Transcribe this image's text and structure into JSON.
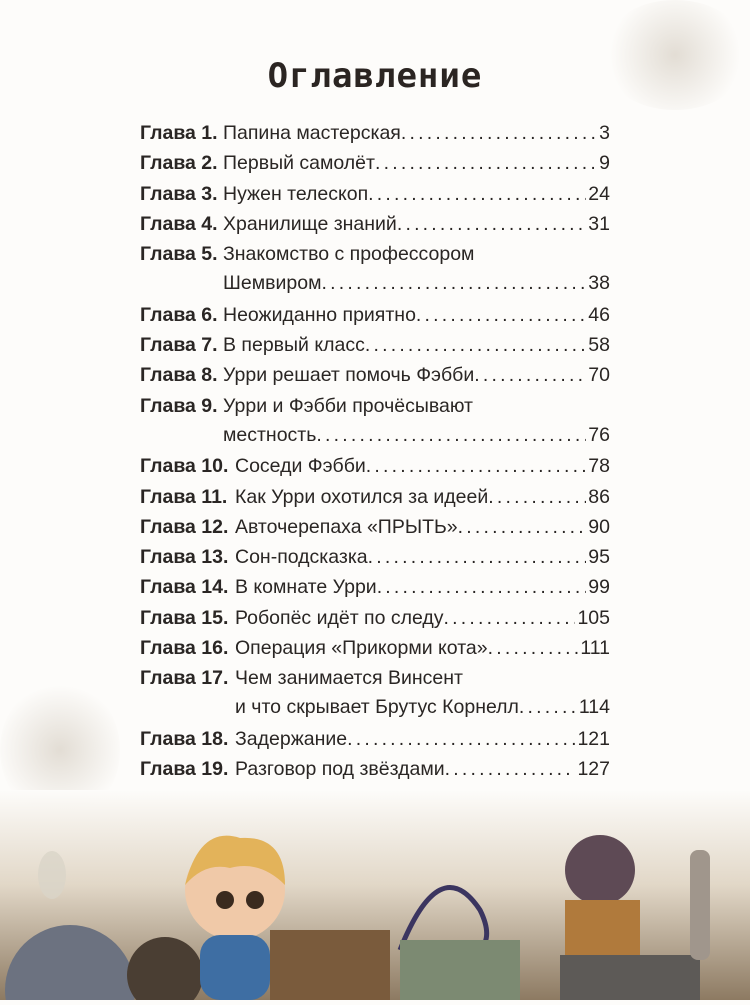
{
  "page_title": "Оглавление",
  "chapters": [
    {
      "label": "Глава 1.",
      "title": "Папина мастерская",
      "page": "3"
    },
    {
      "label": "Глава 2.",
      "title": "Первый самолёт",
      "page": "9"
    },
    {
      "label": "Глава 3.",
      "title": "Нужен телескоп",
      "page": "24"
    },
    {
      "label": "Глава 4.",
      "title": "Хранилище знаний",
      "page": "31"
    },
    {
      "label": "Глава 5.",
      "title": "Знакомство с профессором",
      "title_cont": "Шемвиром",
      "page": "38"
    },
    {
      "label": "Глава 6.",
      "title": "Неожиданно приятно",
      "page": "46"
    },
    {
      "label": "Глава 7.",
      "title": "В первый класс",
      "page": "58"
    },
    {
      "label": "Глава 8.",
      "title": "Урри решает помочь Фэбби",
      "page": "70"
    },
    {
      "label": "Глава 9.",
      "title": "Урри и Фэбби прочёсывают",
      "title_cont": "местность",
      "page": "76"
    },
    {
      "label": "Глава 10.",
      "title": "Соседи Фэбби",
      "page": "78"
    },
    {
      "label": "Глава 11.",
      "title": "Как Урри охотился за идеей",
      "page": "86"
    },
    {
      "label": "Глава 12.",
      "title": "Авточерепаха «ПРЫТЬ»",
      "page": "90"
    },
    {
      "label": "Глава 13.",
      "title": "Сон-подсказка",
      "page": "95"
    },
    {
      "label": "Глава 14.",
      "title": "В комнате Урри",
      "page": "99"
    },
    {
      "label": "Глава 15.",
      "title": "Робопёс идёт по следу",
      "page": "105"
    },
    {
      "label": "Глава 16.",
      "title": "Операция «Прикорми кота»",
      "page": "111"
    },
    {
      "label": "Глава 17.",
      "title": "Чем занимается Винсент",
      "title_cont": "и что скрывает Брутус Корнелл",
      "page": "114"
    },
    {
      "label": "Глава 18.",
      "title": "Задержание",
      "page": "121"
    },
    {
      "label": "Глава 19.",
      "title": "Разговор под звёздами",
      "page": "127"
    }
  ],
  "illustration": "boy-in-workshop-illustration"
}
